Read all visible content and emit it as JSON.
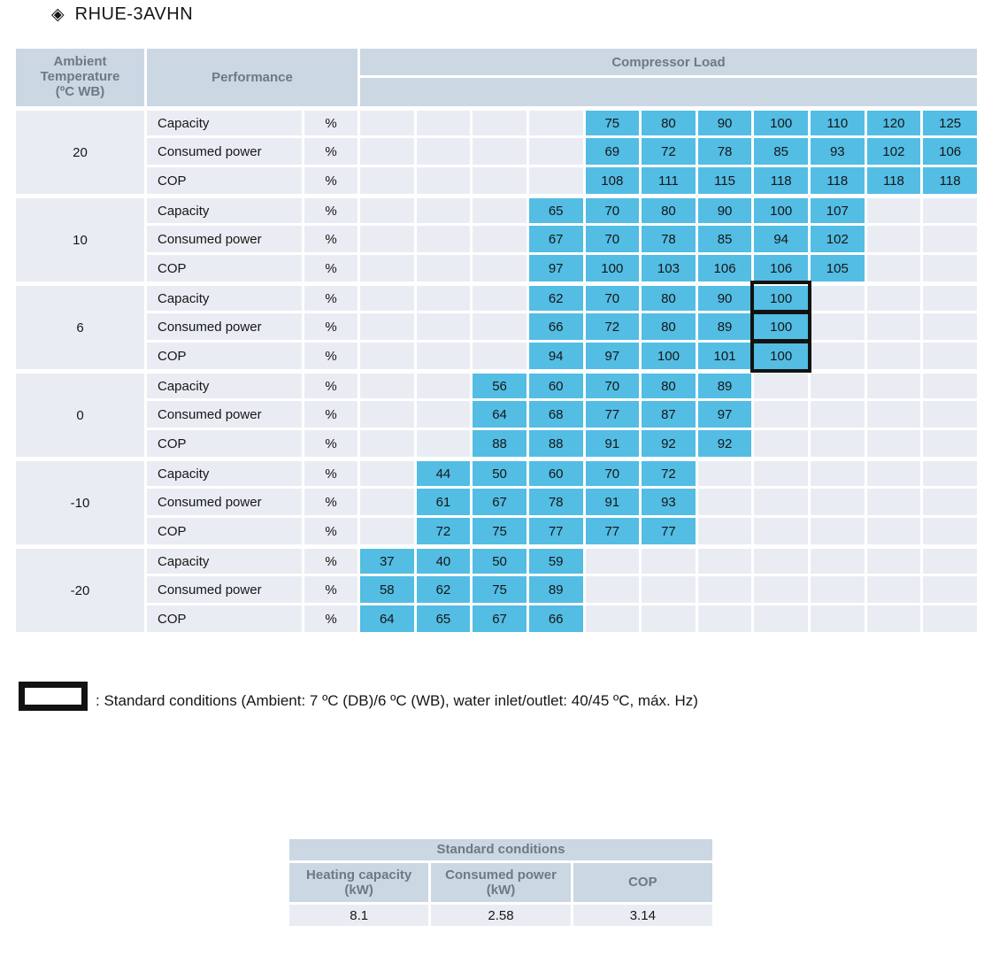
{
  "title": {
    "icon": "◈",
    "text": "RHUE-3AVHN"
  },
  "colors": {
    "value_cell": "#53BDE4",
    "header_bg": "#CBD7E3",
    "light_cell": "#E9EDF3",
    "header_text": "#6D7A86",
    "highlight_border": "#121212"
  },
  "main_table": {
    "ambient_header": "Ambient\nTemperature\n(ºC WB)",
    "performance_header": "Performance",
    "compressor_load_header": "Compressor Load",
    "unit": "%",
    "row_labels": [
      "Capacity",
      "Consumed power",
      "COP"
    ],
    "num_columns": 11,
    "groups": [
      {
        "temp": "20",
        "start": 4,
        "rows": [
          [
            75,
            80,
            90,
            100,
            110,
            120,
            125
          ],
          [
            69,
            72,
            78,
            85,
            93,
            102,
            106
          ],
          [
            108,
            111,
            115,
            118,
            118,
            118,
            118
          ]
        ]
      },
      {
        "temp": "10",
        "start": 3,
        "rows": [
          [
            65,
            70,
            80,
            90,
            100,
            107
          ],
          [
            67,
            70,
            78,
            85,
            94,
            102
          ],
          [
            97,
            100,
            103,
            106,
            106,
            105
          ]
        ]
      },
      {
        "temp": "6",
        "start": 3,
        "highlight_col": 7,
        "rows": [
          [
            62,
            70,
            80,
            90,
            100
          ],
          [
            66,
            72,
            80,
            89,
            100
          ],
          [
            94,
            97,
            100,
            101,
            100
          ]
        ]
      },
      {
        "temp": "0",
        "start": 2,
        "rows": [
          [
            56,
            60,
            70,
            80,
            89
          ],
          [
            64,
            68,
            77,
            87,
            97
          ],
          [
            88,
            88,
            91,
            92,
            92
          ]
        ]
      },
      {
        "temp": "-10",
        "start": 1,
        "rows": [
          [
            44,
            50,
            60,
            70,
            72
          ],
          [
            61,
            67,
            78,
            91,
            93
          ],
          [
            72,
            75,
            77,
            77,
            77
          ]
        ]
      },
      {
        "temp": "-20",
        "start": 0,
        "rows": [
          [
            37,
            40,
            50,
            59
          ],
          [
            58,
            62,
            75,
            89
          ],
          [
            64,
            65,
            67,
            66
          ]
        ]
      }
    ]
  },
  "legend": {
    "text": ": Standard conditions (Ambient: 7 ºC (DB)/6 ºC (WB), water inlet/outlet: 40/45 ºC, máx. Hz)"
  },
  "standard_table": {
    "title": "Standard conditions",
    "columns": [
      "Heating capacity (kW)",
      "Consumed power (kW)",
      "COP"
    ],
    "values": [
      "8.1",
      "2.58",
      "3.14"
    ]
  }
}
